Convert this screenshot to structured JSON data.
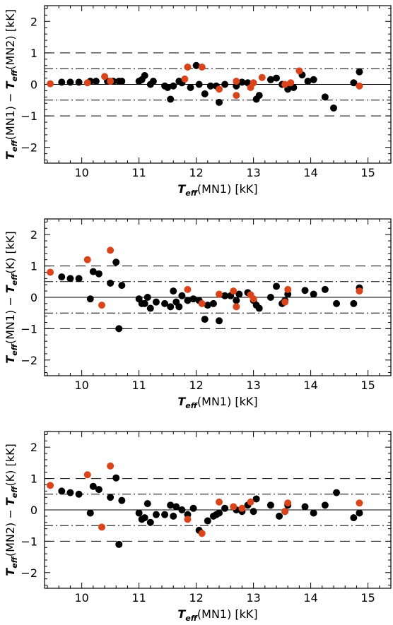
{
  "colors": {
    "black": "#000000",
    "red": "#d9441b",
    "axis": "#000000"
  },
  "chart_data": [
    {
      "type": "scatter",
      "title": "",
      "xlabel": {
        "main": "T",
        "sub": "eff",
        "rest": "(MN1)  [kK]"
      },
      "ylabel": {
        "main1": "T",
        "sub1": "eff",
        "mid": "(MN1)  −  ",
        "main2": "T",
        "sub2": "eff",
        "rest": "(MN2)  [kK]"
      },
      "xlim": [
        9.35,
        15.4
      ],
      "ylim": [
        -2.5,
        2.5
      ],
      "xticks": [
        "10",
        "11",
        "12",
        "13",
        "14",
        "15"
      ],
      "yticks": [
        "2",
        "1",
        "0",
        "−1",
        "−2"
      ],
      "reference_lines": {
        "solid": [
          0
        ],
        "dashdot": [
          0.5,
          -0.5
        ],
        "dashed": [
          1,
          -1
        ]
      },
      "series": [
        {
          "color": "black",
          "points": [
            [
              9.65,
              0.07
            ],
            [
              9.8,
              0.07
            ],
            [
              9.95,
              0.07
            ],
            [
              10.15,
              0.1
            ],
            [
              10.25,
              0.1
            ],
            [
              10.45,
              0.1
            ],
            [
              10.55,
              0.1
            ],
            [
              10.65,
              0.1
            ],
            [
              10.7,
              0.1
            ],
            [
              11.0,
              0.1
            ],
            [
              11.05,
              0.15
            ],
            [
              11.1,
              0.28
            ],
            [
              11.2,
              0.0
            ],
            [
              11.25,
              0.1
            ],
            [
              11.45,
              -0.05
            ],
            [
              11.5,
              -0.1
            ],
            [
              11.55,
              -0.47
            ],
            [
              11.6,
              -0.05
            ],
            [
              11.7,
              0.1
            ],
            [
              11.75,
              0.05
            ],
            [
              11.9,
              -0.1
            ],
            [
              12.0,
              0.6
            ],
            [
              12.05,
              0.0
            ],
            [
              12.15,
              -0.3
            ],
            [
              12.25,
              -0.05
            ],
            [
              12.35,
              -0.05
            ],
            [
              12.4,
              -0.57
            ],
            [
              12.5,
              0.0
            ],
            [
              12.7,
              -0.05
            ],
            [
              12.8,
              0.07
            ],
            [
              12.9,
              0.05
            ],
            [
              12.95,
              -0.05
            ],
            [
              13.05,
              -0.47
            ],
            [
              13.1,
              -0.35
            ],
            [
              13.3,
              0.15
            ],
            [
              13.4,
              0.2
            ],
            [
              13.5,
              0.0
            ],
            [
              13.6,
              -0.15
            ],
            [
              13.7,
              -0.1
            ],
            [
              13.85,
              0.3
            ],
            [
              13.95,
              0.1
            ],
            [
              14.05,
              0.15
            ],
            [
              14.25,
              -0.4
            ],
            [
              14.4,
              -0.75
            ],
            [
              14.75,
              0.05
            ],
            [
              14.85,
              0.4
            ]
          ]
        },
        {
          "color": "red",
          "points": [
            [
              9.45,
              0.02
            ],
            [
              10.1,
              0.05
            ],
            [
              10.4,
              0.25
            ],
            [
              10.5,
              0.1
            ],
            [
              11.8,
              0.17
            ],
            [
              11.85,
              0.55
            ],
            [
              12.1,
              0.55
            ],
            [
              12.4,
              -0.15
            ],
            [
              12.7,
              0.1
            ],
            [
              12.7,
              -0.35
            ],
            [
              12.95,
              -0.1
            ],
            [
              13.0,
              0.05
            ],
            [
              13.15,
              0.22
            ],
            [
              13.55,
              0.0
            ],
            [
              13.65,
              0.05
            ],
            [
              13.8,
              0.43
            ],
            [
              14.85,
              -0.05
            ]
          ]
        }
      ]
    },
    {
      "type": "scatter",
      "title": "",
      "xlabel": {
        "main": "T",
        "sub": "eff",
        "rest": "(MN1)  [kK]"
      },
      "ylabel": {
        "main1": "T",
        "sub1": "eff",
        "mid": "(MN1)  −  ",
        "main2": "T",
        "sub2": "eff",
        "rest": "(K)  [kK]"
      },
      "xlim": [
        9.35,
        15.4
      ],
      "ylim": [
        -2.5,
        2.5
      ],
      "xticks": [
        "10",
        "11",
        "12",
        "13",
        "14",
        "15"
      ],
      "yticks": [
        "2",
        "1",
        "0",
        "−1",
        "−2"
      ],
      "reference_lines": {
        "solid": [
          0
        ],
        "dashdot": [
          0.5,
          -0.5
        ],
        "dashed": [
          1,
          -1
        ]
      },
      "series": [
        {
          "color": "black",
          "points": [
            [
              9.65,
              0.65
            ],
            [
              9.8,
              0.6
            ],
            [
              9.95,
              0.6
            ],
            [
              10.15,
              -0.05
            ],
            [
              10.2,
              0.82
            ],
            [
              10.3,
              0.75
            ],
            [
              10.5,
              0.45
            ],
            [
              10.6,
              1.12
            ],
            [
              10.65,
              -1.0
            ],
            [
              10.7,
              0.38
            ],
            [
              11.0,
              -0.05
            ],
            [
              11.05,
              -0.2
            ],
            [
              11.1,
              -0.2
            ],
            [
              11.15,
              0.0
            ],
            [
              11.2,
              -0.35
            ],
            [
              11.3,
              -0.15
            ],
            [
              11.45,
              -0.2
            ],
            [
              11.55,
              -0.3
            ],
            [
              11.6,
              0.2
            ],
            [
              11.65,
              -0.15
            ],
            [
              11.7,
              -0.3
            ],
            [
              11.75,
              0.05
            ],
            [
              11.85,
              -0.1
            ],
            [
              11.95,
              -0.05
            ],
            [
              12.05,
              -0.1
            ],
            [
              12.15,
              -0.7
            ],
            [
              12.2,
              -0.25
            ],
            [
              12.3,
              -0.2
            ],
            [
              12.4,
              -0.75
            ],
            [
              12.5,
              0.05
            ],
            [
              12.6,
              0.05
            ],
            [
              12.7,
              -0.1
            ],
            [
              12.75,
              0.1
            ],
            [
              12.9,
              0.15
            ],
            [
              13.0,
              -0.1
            ],
            [
              13.05,
              -0.25
            ],
            [
              13.1,
              -0.35
            ],
            [
              13.3,
              0.0
            ],
            [
              13.4,
              0.35
            ],
            [
              13.5,
              -0.2
            ],
            [
              13.55,
              -0.1
            ],
            [
              13.6,
              0.1
            ],
            [
              13.9,
              0.22
            ],
            [
              14.05,
              0.1
            ],
            [
              14.25,
              0.25
            ],
            [
              14.45,
              -0.2
            ],
            [
              14.75,
              -0.2
            ],
            [
              14.85,
              0.3
            ]
          ]
        },
        {
          "color": "red",
          "points": [
            [
              9.45,
              0.8
            ],
            [
              10.1,
              1.2
            ],
            [
              10.35,
              -0.25
            ],
            [
              10.5,
              1.5
            ],
            [
              11.85,
              0.25
            ],
            [
              12.1,
              -0.2
            ],
            [
              12.4,
              0.1
            ],
            [
              12.65,
              0.2
            ],
            [
              12.7,
              -0.3
            ],
            [
              12.95,
              0.08
            ],
            [
              13.0,
              -0.05
            ],
            [
              13.55,
              -0.15
            ],
            [
              13.6,
              0.25
            ],
            [
              14.85,
              0.2
            ]
          ]
        }
      ]
    },
    {
      "type": "scatter",
      "title": "",
      "xlabel": {
        "main": "T",
        "sub": "eff",
        "rest": "(MN1)  [kK]"
      },
      "ylabel": {
        "main1": "T",
        "sub1": "eff",
        "mid": "(MN2)  −  ",
        "main2": "T",
        "sub2": "eff",
        "rest": "(K)  [kK]"
      },
      "xlim": [
        9.35,
        15.4
      ],
      "ylim": [
        -2.5,
        2.5
      ],
      "xticks": [
        "10",
        "11",
        "12",
        "13",
        "14",
        "15"
      ],
      "yticks": [
        "2",
        "1",
        "0",
        "−1",
        "−2"
      ],
      "reference_lines": {
        "solid": [
          0
        ],
        "dashdot": [
          0.5,
          -0.5
        ],
        "dashed": [
          1,
          -1
        ]
      },
      "series": [
        {
          "color": "black",
          "points": [
            [
              9.65,
              0.6
            ],
            [
              9.8,
              0.55
            ],
            [
              9.95,
              0.5
            ],
            [
              10.15,
              -0.1
            ],
            [
              10.2,
              0.75
            ],
            [
              10.3,
              0.65
            ],
            [
              10.5,
              0.4
            ],
            [
              10.6,
              1.02
            ],
            [
              10.65,
              -1.1
            ],
            [
              10.7,
              0.3
            ],
            [
              11.0,
              -0.1
            ],
            [
              11.05,
              -0.3
            ],
            [
              11.1,
              -0.25
            ],
            [
              11.15,
              0.2
            ],
            [
              11.2,
              -0.4
            ],
            [
              11.3,
              -0.15
            ],
            [
              11.45,
              -0.15
            ],
            [
              11.55,
              0.15
            ],
            [
              11.6,
              -0.2
            ],
            [
              11.65,
              0.1
            ],
            [
              11.75,
              0.0
            ],
            [
              11.85,
              -0.15
            ],
            [
              11.95,
              0.05
            ],
            [
              12.05,
              -0.65
            ],
            [
              12.2,
              -0.35
            ],
            [
              12.3,
              -0.2
            ],
            [
              12.35,
              -0.15
            ],
            [
              12.4,
              -0.1
            ],
            [
              12.5,
              0.05
            ],
            [
              12.7,
              0.0
            ],
            [
              12.8,
              -0.05
            ],
            [
              12.9,
              0.15
            ],
            [
              13.0,
              -0.05
            ],
            [
              13.05,
              0.35
            ],
            [
              13.3,
              0.15
            ],
            [
              13.45,
              -0.2
            ],
            [
              13.55,
              -0.05
            ],
            [
              13.6,
              0.15
            ],
            [
              13.9,
              0.1
            ],
            [
              14.05,
              -0.1
            ],
            [
              14.25,
              0.15
            ],
            [
              14.45,
              0.55
            ],
            [
              14.75,
              -0.25
            ],
            [
              14.85,
              -0.1
            ]
          ]
        },
        {
          "color": "red",
          "points": [
            [
              9.45,
              0.78
            ],
            [
              10.1,
              1.12
            ],
            [
              10.35,
              -0.55
            ],
            [
              10.5,
              1.4
            ],
            [
              11.85,
              -0.3
            ],
            [
              12.1,
              -0.75
            ],
            [
              12.4,
              0.25
            ],
            [
              12.65,
              0.1
            ],
            [
              12.8,
              0.05
            ],
            [
              12.95,
              0.25
            ],
            [
              13.55,
              -0.05
            ],
            [
              13.6,
              0.22
            ],
            [
              14.85,
              0.22
            ]
          ]
        }
      ]
    }
  ]
}
